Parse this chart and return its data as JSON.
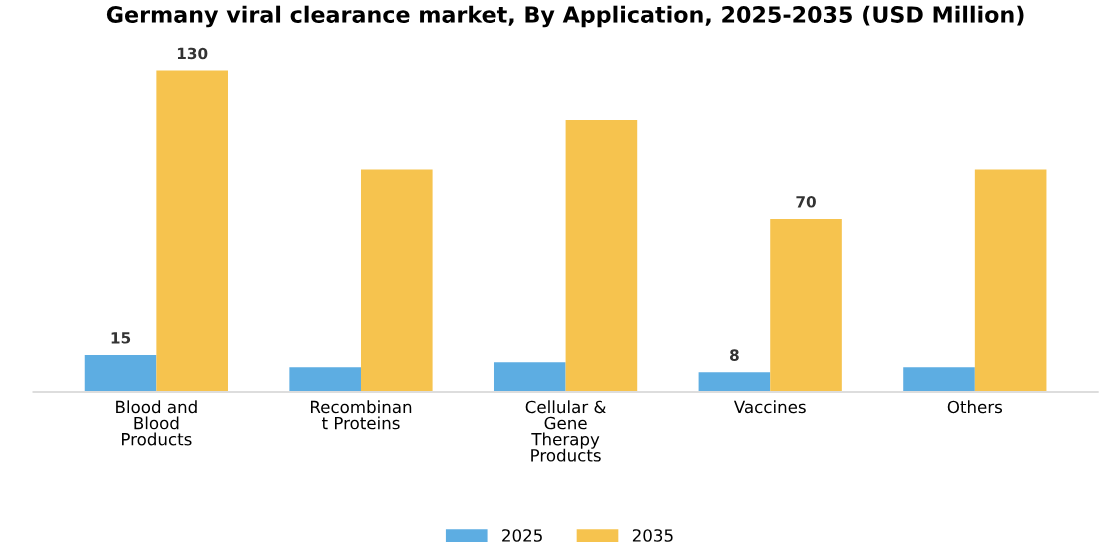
{
  "chart_data": {
    "type": "bar",
    "title": "Germany viral clearance market, By Application, 2025-2035 (USD Million)",
    "categories": [
      "Blood and\nBlood\nProducts",
      "Recombinan\nt Proteins",
      "Cellular &\nGene\nTherapy\nProducts",
      "Vaccines",
      "Others"
    ],
    "series": [
      {
        "name": "2025",
        "color": "#5dade2",
        "values": [
          15,
          10,
          12,
          8,
          10
        ],
        "value_labels": [
          "15",
          null,
          null,
          "8",
          null
        ]
      },
      {
        "name": "2035",
        "color": "#f6c34e",
        "values": [
          130,
          90,
          110,
          70,
          90
        ],
        "value_labels": [
          "130",
          null,
          null,
          "70",
          null
        ]
      }
    ],
    "legend": "bottom",
    "grid": false
  }
}
